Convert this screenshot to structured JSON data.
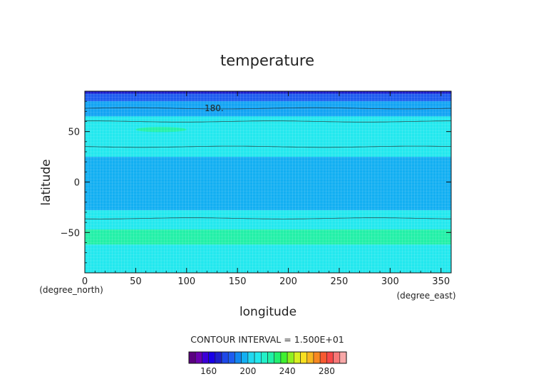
{
  "chart_data": {
    "type": "heatmap",
    "title": "temperature",
    "xlabel": "longitude",
    "ylabel": "latitude",
    "x_unit": "(degree_east)",
    "y_unit": "(degree_north)",
    "xlim": [
      0,
      360
    ],
    "ylim": [
      -90,
      90
    ],
    "x_ticks": [
      0,
      50,
      100,
      150,
      200,
      250,
      300,
      350
    ],
    "y_ticks": [
      -50,
      0,
      50
    ],
    "grid": true,
    "contour_interval_label": "CONTOUR INTERVAL = 1.500E+01",
    "contour_label": "180.",
    "contour_label_lon": 127,
    "contour_label_lat": 73,
    "bands": [
      {
        "lat_from": 87.5,
        "lat_to": 90,
        "color": "#1e1ecc"
      },
      {
        "lat_from": 80,
        "lat_to": 87.5,
        "color": "#1e5cf0"
      },
      {
        "lat_from": 65,
        "lat_to": 80,
        "color": "#12a4f4"
      },
      {
        "lat_from": 25,
        "lat_to": 65,
        "color": "#22e8ee"
      },
      {
        "lat_from": -28,
        "lat_to": 25,
        "color": "#12aff2"
      },
      {
        "lat_from": -47,
        "lat_to": -28,
        "color": "#22e8ee"
      },
      {
        "lat_from": -62,
        "lat_to": -47,
        "color": "#22f0a8"
      },
      {
        "lat_from": -90,
        "lat_to": -62,
        "color": "#22e8ee"
      }
    ],
    "patches": [
      {
        "lon_center": 75,
        "lat_center": 52,
        "lon_halfwidth": 25,
        "lat_halfheight": 2.5,
        "color": "#22f0a8"
      }
    ],
    "contour_lines": [
      {
        "lat": 73
      },
      {
        "lat": 60
      },
      {
        "lat": 35
      },
      {
        "lat": -36
      }
    ],
    "colorbar": {
      "colors": [
        "#5a0080",
        "#6a00b0",
        "#3c00d8",
        "#1800e8",
        "#1e1ecc",
        "#1e48e8",
        "#1e5cf0",
        "#1287f0",
        "#12aff2",
        "#22d8f0",
        "#22e8ee",
        "#22f0c8",
        "#22f0a8",
        "#22f070",
        "#40f030",
        "#90f020",
        "#d8f020",
        "#f8e020",
        "#f8b820",
        "#f88820",
        "#f85a30",
        "#f84848",
        "#f87878",
        "#f8a8a8"
      ],
      "min": 140,
      "max": 300,
      "ticks": [
        160,
        200,
        240,
        280
      ]
    }
  }
}
